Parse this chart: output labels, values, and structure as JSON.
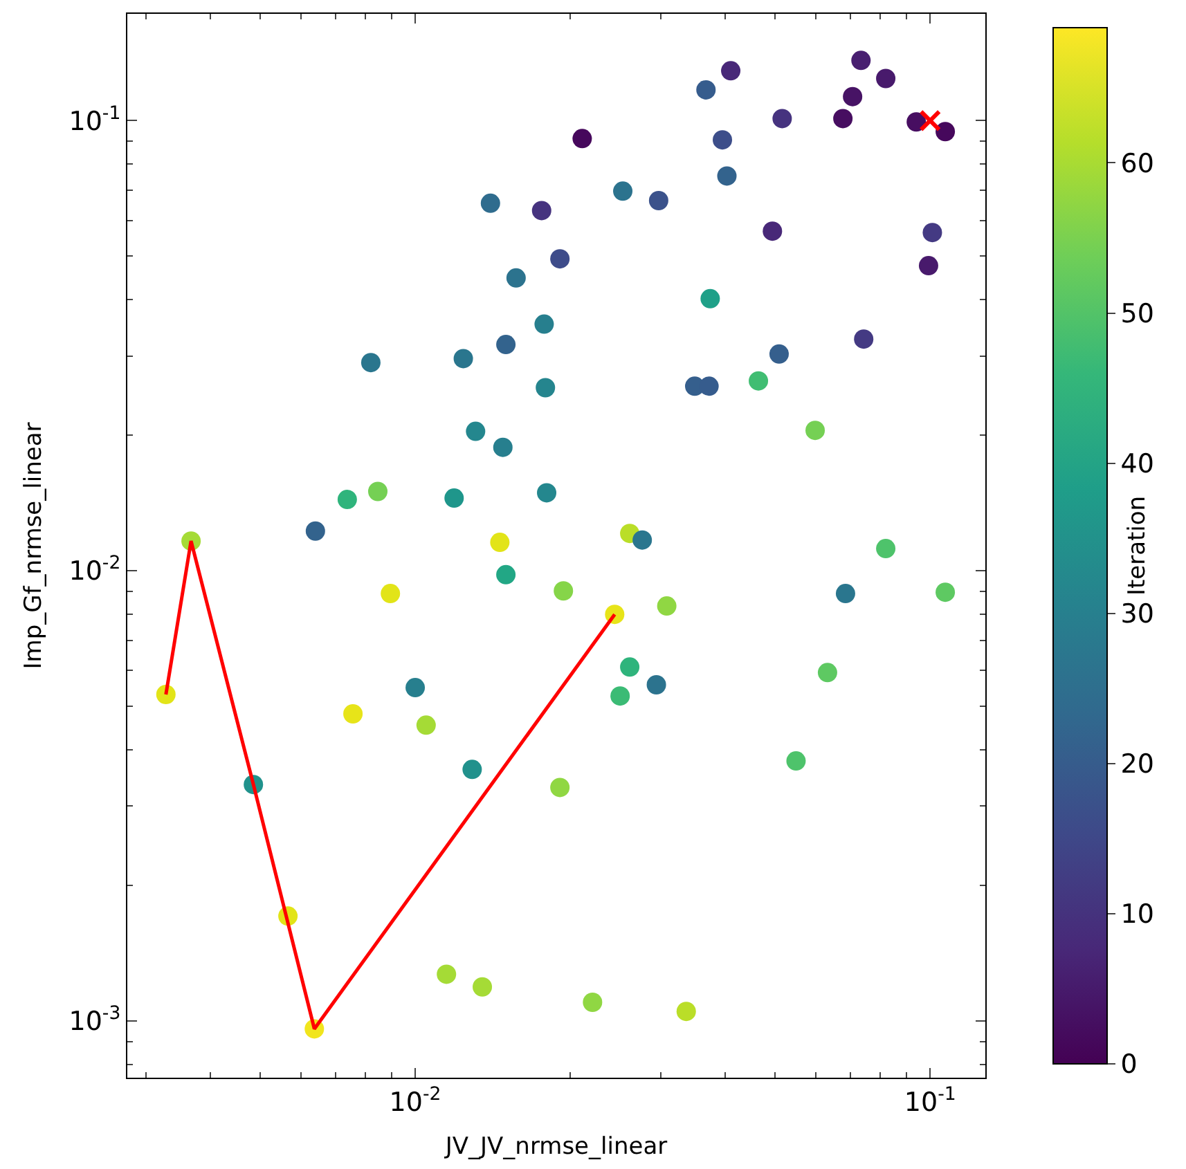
{
  "chart_data": {
    "type": "scatter",
    "xlabel": "JV_JV_nrmse_linear",
    "ylabel": "Imp_Gf_nrmse_linear",
    "clabel": "Iteration",
    "log": "xy",
    "xlim": [
      0.00276,
      0.128
    ],
    "ylim": [
      0.000748,
      0.1726
    ],
    "xticks": [
      {
        "value": 0.003,
        "label": null
      },
      {
        "value": 0.004,
        "label": null
      },
      {
        "value": 0.005,
        "label": null
      },
      {
        "value": 0.006,
        "label": null
      },
      {
        "value": 0.007,
        "label": null
      },
      {
        "value": 0.008,
        "label": null
      },
      {
        "value": 0.009,
        "label": null
      },
      {
        "value": 0.01,
        "label": "10$^{-2}$"
      },
      {
        "value": 0.02,
        "label": null
      },
      {
        "value": 0.03,
        "label": null
      },
      {
        "value": 0.04,
        "label": null
      },
      {
        "value": 0.05,
        "label": null
      },
      {
        "value": 0.06,
        "label": null
      },
      {
        "value": 0.07,
        "label": null
      },
      {
        "value": 0.08,
        "label": null
      },
      {
        "value": 0.09,
        "label": null
      },
      {
        "value": 0.1,
        "label": "10$^{-1}$"
      }
    ],
    "yticks": [
      {
        "value": 0.0008,
        "label": null
      },
      {
        "value": 0.0009,
        "label": null
      },
      {
        "value": 0.001,
        "label": "10$^{-3}$"
      },
      {
        "value": 0.002,
        "label": null
      },
      {
        "value": 0.003,
        "label": null
      },
      {
        "value": 0.004,
        "label": null
      },
      {
        "value": 0.005,
        "label": null
      },
      {
        "value": 0.006,
        "label": null
      },
      {
        "value": 0.007,
        "label": null
      },
      {
        "value": 0.008,
        "label": null
      },
      {
        "value": 0.009,
        "label": null
      },
      {
        "value": 0.01,
        "label": "10$^{-2}$"
      },
      {
        "value": 0.02,
        "label": null
      },
      {
        "value": 0.03,
        "label": null
      },
      {
        "value": 0.04,
        "label": null
      },
      {
        "value": 0.05,
        "label": null
      },
      {
        "value": 0.06,
        "label": null
      },
      {
        "value": 0.07,
        "label": null
      },
      {
        "value": 0.08,
        "label": null
      },
      {
        "value": 0.09,
        "label": null
      },
      {
        "value": 0.1,
        "label": "10$^{-1}$"
      }
    ],
    "clim": [
      0,
      69
    ],
    "cticks": [
      0,
      10,
      20,
      30,
      40,
      50,
      60
    ],
    "series": [
      {
        "marker": "circle",
        "x": [
          0.0211,
          0.041,
          0.0367,
          0.0734,
          0.082,
          0.0707,
          0.0677,
          0.0516,
          0.094,
          0.107,
          0.0395,
          0.0403,
          0.0253,
          0.0297,
          0.014,
          0.0176,
          0.0494,
          0.101,
          0.0191,
          0.0993,
          0.0157,
          0.0374,
          0.0178,
          0.015,
          0.0743,
          0.0124,
          0.0082,
          0.0509,
          0.0349,
          0.0372,
          0.0179,
          0.0464,
          0.0598,
          0.0131,
          0.0148,
          0.00738,
          0.00846,
          0.0119,
          0.018,
          0.0064,
          0.0261,
          0.0146,
          0.0276,
          0.00367,
          0.082,
          0.015,
          0.107,
          0.0685,
          0.0194,
          0.00895,
          0.0308,
          0.0244,
          0.0261,
          0.0632,
          0.025,
          0.0294,
          0.00328,
          0.00757,
          0.01,
          0.0105,
          0.0129,
          0.0549,
          0.00485,
          0.0191,
          0.00566,
          0.0115,
          0.0135,
          0.0221,
          0.0336,
          0.00637
        ],
        "values": [
          0.0912,
          0.129,
          0.117,
          0.136,
          0.124,
          0.113,
          0.101,
          0.101,
          0.0993,
          0.0945,
          0.0906,
          0.0753,
          0.0697,
          0.0664,
          0.0655,
          0.0631,
          0.0568,
          0.0564,
          0.0493,
          0.0476,
          0.0447,
          0.0402,
          0.0353,
          0.0318,
          0.0327,
          0.0296,
          0.029,
          0.0303,
          0.0257,
          0.0257,
          0.0255,
          0.0264,
          0.0205,
          0.0204,
          0.0188,
          0.0144,
          0.015,
          0.0145,
          0.0149,
          0.01225,
          0.0121,
          0.01156,
          0.0117,
          0.01164,
          0.0112,
          0.0098,
          0.00896,
          0.0089,
          0.00902,
          0.0089,
          0.00835,
          0.008,
          0.00611,
          0.00594,
          0.00527,
          0.00558,
          0.00531,
          0.00481,
          0.0055,
          0.00454,
          0.00362,
          0.00378,
          0.00335,
          0.0033,
          0.00171,
          0.00127,
          0.00119,
          0.0011,
          0.00105,
          0.00096
        ],
        "colors": [
          "#46085c",
          "#482878",
          "#365c8d",
          "#481f70",
          "#481a6c",
          "#471365",
          "#470e61",
          "#46337f",
          "#470e61",
          "#46085c",
          "#3d4e8a",
          "#33638d",
          "#2c738e",
          "#3b528b",
          "#2f6c8e",
          "#46337f",
          "#482878",
          "#443a83",
          "#3e4c8a",
          "#481a6c",
          "#2c738e",
          "#1fa088",
          "#277f8e",
          "#33638d",
          "#443a83",
          "#2a768e",
          "#2a768e",
          "#355f8d",
          "#355f8d",
          "#365c8d",
          "#25858e",
          "#40bd72",
          "#75d054",
          "#24878e",
          "#277f8e",
          "#2fb47c",
          "#75d054",
          "#1f968b",
          "#24878e",
          "#33638d",
          "#bade28",
          "#e2e418",
          "#2a768e",
          "#a5db36",
          "#4ec36b",
          "#22a785",
          "#5ec962",
          "#2a768e",
          "#86d549",
          "#e2e418",
          "#90d743",
          "#e7e419",
          "#2fb47c",
          "#5ec962",
          "#3bbb75",
          "#2c738e",
          "#e2e418",
          "#e7e419",
          "#277f8e",
          "#a5db36",
          "#21918c",
          "#4ec36b",
          "#20928c",
          "#90d743",
          "#e2e418",
          "#a5db36",
          "#a5db36",
          "#90d743",
          "#bade28",
          "#f1e51d"
        ]
      },
      {
        "type": "line",
        "color": "#ff0000",
        "x": [
          0.00328,
          0.00367,
          0.00485,
          0.00637,
          0.0244
        ],
        "values": [
          0.00531,
          0.01164,
          0.00335,
          0.00096,
          0.008
        ]
      },
      {
        "type": "scatter",
        "marker": "cross",
        "color": "#ff0000",
        "x": [
          0.1
        ],
        "values": [
          0.1
        ]
      }
    ]
  }
}
